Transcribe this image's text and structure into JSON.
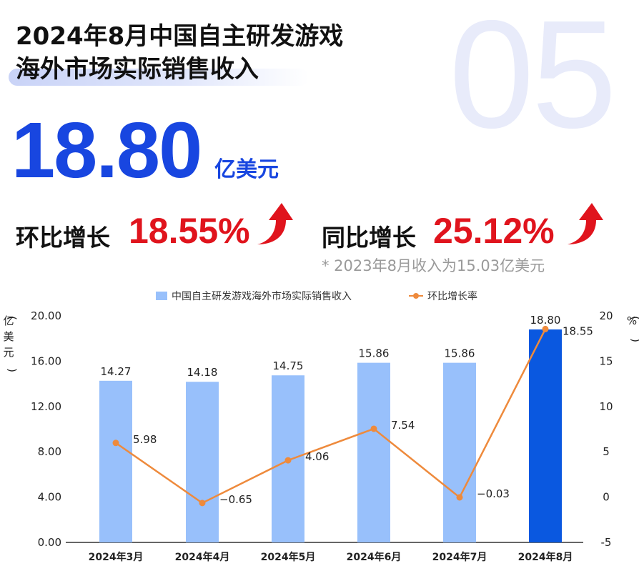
{
  "background_number": "05",
  "title_lines": [
    "2024年8月中国自主研发游戏",
    "海外市场实际销售收入"
  ],
  "headline": {
    "value": "18.80",
    "unit": "亿美元"
  },
  "growth": [
    {
      "label": "环比增长",
      "value": "18.55%"
    },
    {
      "label": "同比增长",
      "value": "25.12%"
    }
  ],
  "footnote": "* 2023年8月收入为15.03亿美元",
  "colors": {
    "accent_blue": "#1846e0",
    "growth_red": "#e0141d",
    "bar_light": "#98c0fb",
    "bar_highlight": "#0a58e0",
    "line_orange": "#ee8a3c"
  },
  "chart_data": {
    "type": "bar",
    "categories": [
      "2024年3月",
      "2024年4月",
      "2024年5月",
      "2024年6月",
      "2024年7月",
      "2024年8月"
    ],
    "series": [
      {
        "name": "中国自主研发游戏海外市场实际销售收入",
        "type": "bar",
        "axis": "left",
        "values": [
          14.27,
          14.18,
          14.75,
          15.86,
          15.86,
          18.8
        ],
        "labels": [
          "14.27",
          "14.18",
          "14.75",
          "15.86",
          "15.86",
          "18.80"
        ]
      },
      {
        "name": "环比增长率",
        "type": "line",
        "axis": "right",
        "values": [
          5.98,
          -0.65,
          4.06,
          7.54,
          -0.03,
          18.55
        ],
        "labels": [
          "5.98",
          "−0.65",
          "4.06",
          "7.54",
          "−0.03",
          "18.55"
        ]
      }
    ],
    "ylabel_left": "亿美元",
    "ylabel_right": "%",
    "ylim_left": [
      0,
      20
    ],
    "yticks_left": [
      "0.00",
      "4.00",
      "8.00",
      "12.00",
      "16.00",
      "20.00"
    ],
    "ylim_right": [
      -5,
      20
    ],
    "yticks_right": [
      "-5",
      "0",
      "5",
      "10",
      "15",
      "20"
    ],
    "highlight_index": 5,
    "grid": false,
    "legend_position": "top"
  }
}
